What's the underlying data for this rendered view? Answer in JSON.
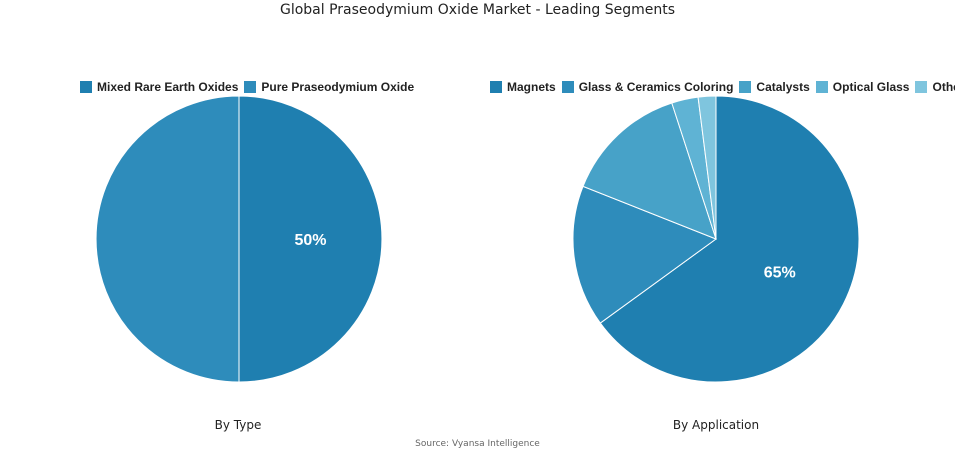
{
  "title": "Global Praseodymium Oxide Market - Leading Segments",
  "source": "Source: Vyansa Intelligence",
  "chart_data": [
    {
      "type": "pie",
      "subtitle": "By Type",
      "legend_position": "top",
      "categories": [
        "Mixed Rare Earth Oxides",
        "Pure Praseodymium Oxide"
      ],
      "values": [
        50,
        50
      ],
      "colors": [
        "#1f7fb0",
        "#2e8cbb"
      ],
      "data_labels": [
        "50%",
        ""
      ]
    },
    {
      "type": "pie",
      "subtitle": "By Application",
      "legend_position": "top",
      "categories": [
        "Magnets",
        "Glass & Ceramics Coloring",
        "Catalysts",
        "Optical Glass",
        "Others"
      ],
      "values": [
        65,
        16,
        14,
        3,
        2
      ],
      "colors": [
        "#1f7fb0",
        "#2e8cbb",
        "#47a2c8",
        "#5fb3d4",
        "#7fc5de"
      ],
      "data_labels": [
        "65%",
        "",
        "",
        "",
        ""
      ]
    }
  ]
}
